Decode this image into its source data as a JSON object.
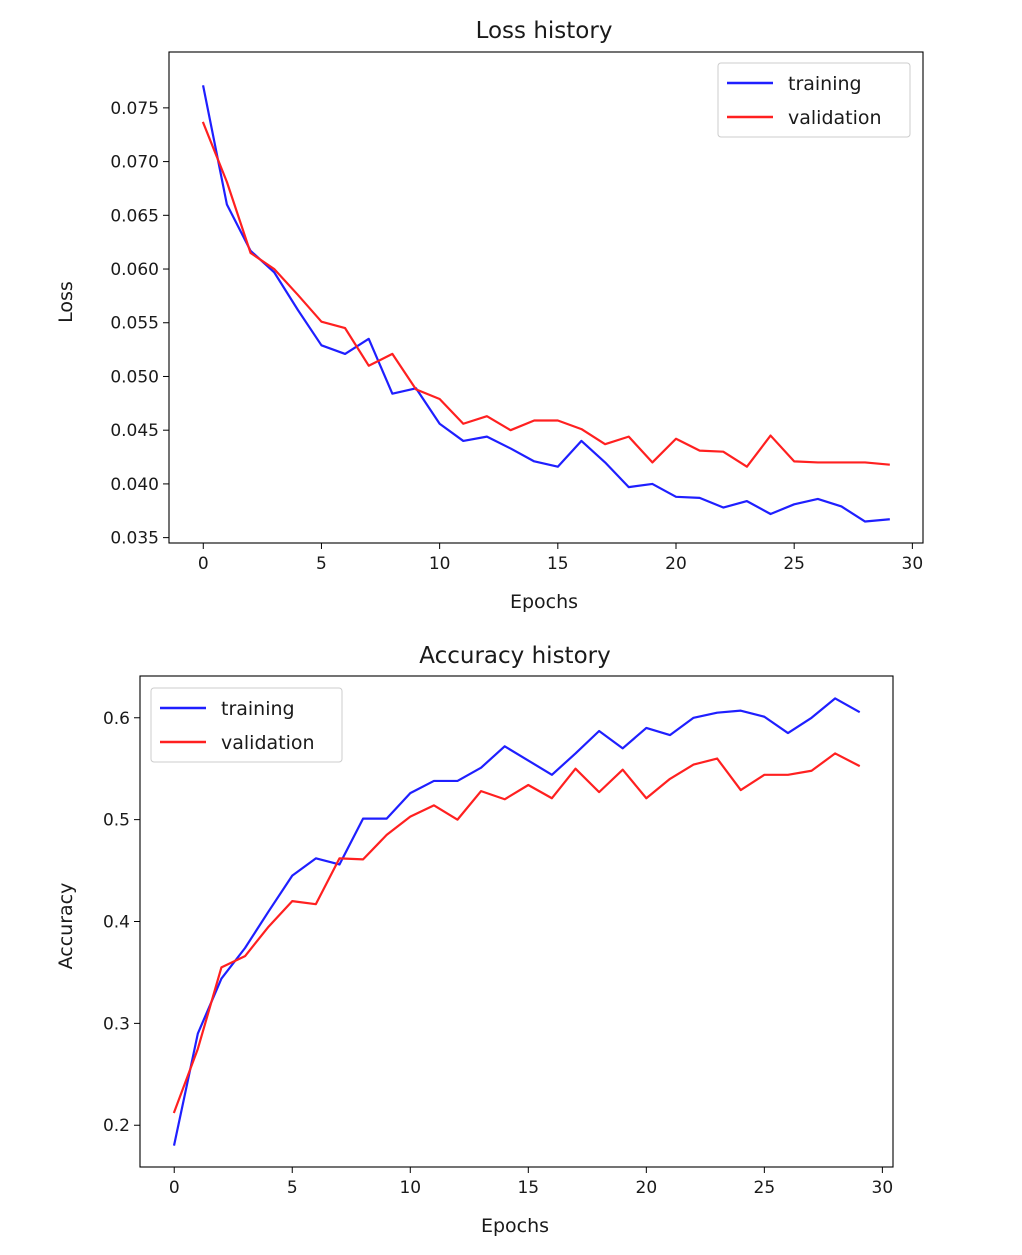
{
  "chart_data": [
    {
      "type": "line",
      "title": "Loss history",
      "xlabel": "Epochs",
      "ylabel": "Loss",
      "xlim": [
        -1.45,
        30.45
      ],
      "ylim": [
        0.0345,
        0.0802
      ],
      "xticks": [
        0,
        5,
        10,
        15,
        20,
        25,
        30
      ],
      "xtick_labels": [
        "0",
        "5",
        "10",
        "15",
        "20",
        "25",
        "30"
      ],
      "yticks": [
        0.035,
        0.04,
        0.045,
        0.05,
        0.055,
        0.06,
        0.065,
        0.07,
        0.075
      ],
      "ytick_labels": [
        "0.035",
        "0.040",
        "0.045",
        "0.050",
        "0.055",
        "0.060",
        "0.065",
        "0.070",
        "0.075"
      ],
      "grid": false,
      "legend_position": "top-right",
      "x": [
        0,
        1,
        2,
        3,
        4,
        5,
        6,
        7,
        8,
        9,
        10,
        11,
        12,
        13,
        14,
        15,
        16,
        17,
        18,
        19,
        20,
        21,
        22,
        23,
        24,
        25,
        26,
        27,
        28,
        29
      ],
      "series": [
        {
          "name": "training",
          "color": "#1f1fff",
          "values": [
            0.077,
            0.066,
            0.0617,
            0.0597,
            0.0562,
            0.0529,
            0.0521,
            0.0535,
            0.0484,
            0.0489,
            0.0456,
            0.044,
            0.0444,
            0.0433,
            0.0421,
            0.0416,
            0.044,
            0.042,
            0.0397,
            0.04,
            0.0388,
            0.0387,
            0.0378,
            0.0384,
            0.0372,
            0.0381,
            0.0386,
            0.0379,
            0.0365,
            0.0367
          ]
        },
        {
          "name": "validation",
          "color": "#ff2020",
          "values": [
            0.0736,
            0.0681,
            0.0615,
            0.06,
            0.0576,
            0.0551,
            0.0545,
            0.051,
            0.0521,
            0.0488,
            0.0479,
            0.0456,
            0.0463,
            0.045,
            0.0459,
            0.0459,
            0.0451,
            0.0437,
            0.0444,
            0.042,
            0.0442,
            0.0431,
            0.043,
            0.0416,
            0.0445,
            0.0421,
            0.042,
            0.042,
            0.042,
            0.0418
          ]
        }
      ]
    },
    {
      "type": "line",
      "title": "Accuracy history",
      "xlabel": "Epochs",
      "ylabel": "Accuracy",
      "xlim": [
        -1.45,
        30.45
      ],
      "ylim": [
        0.159,
        0.641
      ],
      "xticks": [
        0,
        5,
        10,
        15,
        20,
        25,
        30
      ],
      "xtick_labels": [
        "0",
        "5",
        "10",
        "15",
        "20",
        "25",
        "30"
      ],
      "yticks": [
        0.2,
        0.3,
        0.4,
        0.5,
        0.6
      ],
      "ytick_labels": [
        "0.2",
        "0.3",
        "0.4",
        "0.5",
        "0.6"
      ],
      "grid": false,
      "legend_position": "top-left",
      "x": [
        0,
        1,
        2,
        3,
        4,
        5,
        6,
        7,
        8,
        9,
        10,
        11,
        12,
        13,
        14,
        15,
        16,
        17,
        18,
        19,
        20,
        21,
        22,
        23,
        24,
        25,
        26,
        27,
        28,
        29
      ],
      "series": [
        {
          "name": "training",
          "color": "#1f1fff",
          "values": [
            0.181,
            0.29,
            0.344,
            0.374,
            0.41,
            0.445,
            0.462,
            0.456,
            0.501,
            0.501,
            0.526,
            0.538,
            0.538,
            0.551,
            0.572,
            0.558,
            0.544,
            0.565,
            0.587,
            0.57,
            0.59,
            0.583,
            0.6,
            0.605,
            0.607,
            0.601,
            0.585,
            0.6,
            0.619,
            0.606
          ]
        },
        {
          "name": "validation",
          "color": "#ff2020",
          "values": [
            0.213,
            0.275,
            0.355,
            0.366,
            0.395,
            0.42,
            0.417,
            0.462,
            0.461,
            0.485,
            0.503,
            0.514,
            0.5,
            0.528,
            0.52,
            0.534,
            0.521,
            0.55,
            0.527,
            0.549,
            0.521,
            0.54,
            0.554,
            0.56,
            0.529,
            0.544,
            0.544,
            0.548,
            0.565,
            0.553
          ]
        }
      ]
    }
  ]
}
